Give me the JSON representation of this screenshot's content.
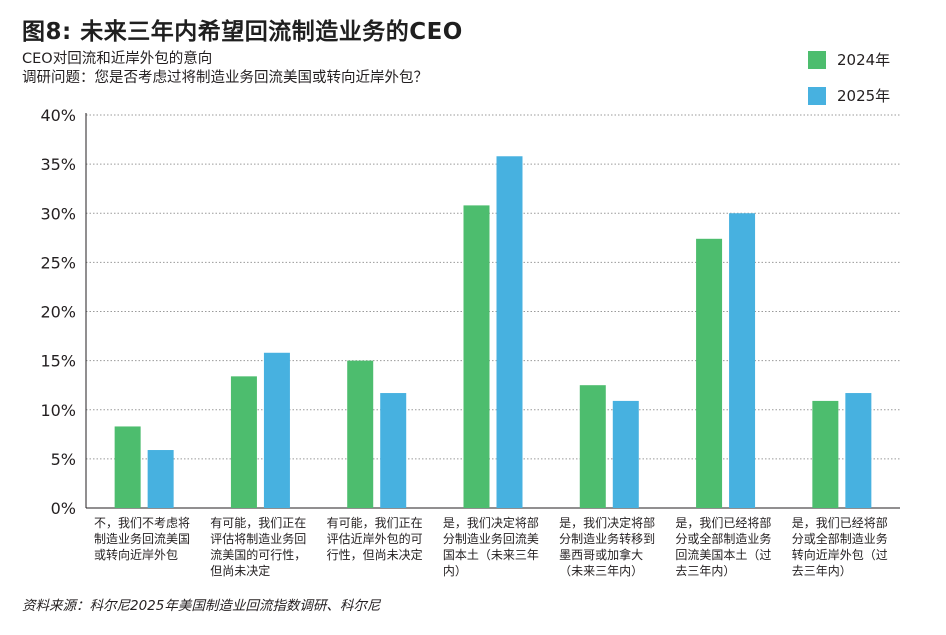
{
  "title": "图8: 未来三年内希望回流制造业务的CEO",
  "subtitle_line1": "CEO对回流和近岸外包的意向",
  "subtitle_line2": "调研问题：您是否考虑过将制造业务回流美国或转向近岸外包？",
  "source": "资料来源：科尔尼2025年美国制造业回流指数调研、科尔尼",
  "colors": {
    "series_2024": "#4dbd6e",
    "series_2025": "#47b1e0",
    "grid": "#9a9a9a",
    "axis": "#231f20"
  },
  "chart_data": {
    "type": "bar",
    "categories": [
      [
        "不，我们不考虑将",
        "制造业务回流美国",
        "或转向近岸外包"
      ],
      [
        "有可能，我们正在",
        "评估将制造业务回",
        "流美国的可行性，",
        "但尚未决定"
      ],
      [
        "有可能，我们正在",
        "评估近岸外包的可",
        "行性，但尚未决定"
      ],
      [
        "是，我们决定将部",
        "分制造业务回流美",
        "国本土（未来三年",
        "内）"
      ],
      [
        "是，我们决定将部",
        "分制造业务转移到",
        "墨西哥或加拿大",
        "（未来三年内）"
      ],
      [
        "是，我们已经将部",
        "分或全部制造业务",
        "回流美国本土（过",
        "去三年内）"
      ],
      [
        "是，我们已经将部",
        "分或全部制造业务",
        "转向近岸外包（过",
        "去三年内）"
      ]
    ],
    "series": [
      {
        "name": "2024年",
        "values": [
          8.3,
          13.4,
          15.0,
          30.8,
          12.5,
          27.4,
          10.9
        ]
      },
      {
        "name": "2025年",
        "values": [
          5.9,
          15.8,
          11.7,
          35.8,
          10.9,
          30.0,
          11.7
        ]
      }
    ],
    "ylim": [
      0,
      40
    ],
    "yticks": [
      "0%",
      "5%",
      "10%",
      "15%",
      "20%",
      "25%",
      "30%",
      "35%",
      "40%"
    ],
    "grid": true,
    "legend_position": "top-right"
  }
}
